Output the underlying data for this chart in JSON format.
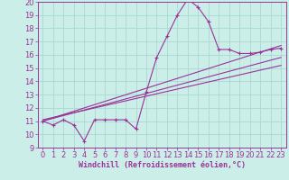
{
  "xlabel": "Windchill (Refroidissement éolien,°C)",
  "bg_color": "#cceee8",
  "grid_color": "#aad8d2",
  "line_color": "#993399",
  "xlim": [
    -0.5,
    23.5
  ],
  "ylim": [
    9,
    20
  ],
  "yticks": [
    9,
    10,
    11,
    12,
    13,
    14,
    15,
    16,
    17,
    18,
    19,
    20
  ],
  "xticks": [
    0,
    1,
    2,
    3,
    4,
    5,
    6,
    7,
    8,
    9,
    10,
    11,
    12,
    13,
    14,
    15,
    16,
    17,
    18,
    19,
    20,
    21,
    22,
    23
  ],
  "data_line": {
    "x": [
      0,
      1,
      2,
      3,
      4,
      5,
      6,
      7,
      8,
      9,
      10,
      11,
      12,
      13,
      14,
      15,
      16,
      17,
      18,
      19,
      20,
      21,
      22,
      23
    ],
    "y": [
      11.0,
      10.7,
      11.1,
      10.7,
      9.5,
      11.1,
      11.1,
      11.1,
      11.1,
      10.4,
      13.2,
      15.8,
      17.4,
      19.0,
      20.2,
      19.6,
      18.5,
      16.4,
      16.4,
      16.1,
      16.1,
      16.2,
      16.4,
      16.5
    ]
  },
  "regression_lines": [
    {
      "x": [
        0,
        23
      ],
      "y": [
        11.0,
        16.7
      ]
    },
    {
      "x": [
        0,
        23
      ],
      "y": [
        11.0,
        15.8
      ]
    },
    {
      "x": [
        0,
        23
      ],
      "y": [
        11.1,
        15.2
      ]
    }
  ],
  "xlabel_fontsize": 6,
  "tick_fontsize": 6
}
